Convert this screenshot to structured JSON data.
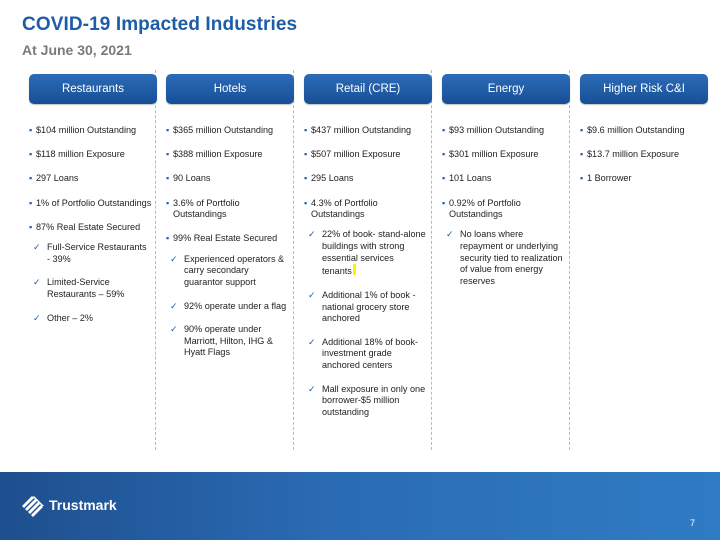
{
  "title": "COVID-19 Impacted Industries",
  "subtitle": "At June 30, 2021",
  "columns": [
    {
      "header": "Restaurants",
      "items": [
        "$104 million Outstanding",
        "$118 million Exposure",
        "297 Loans",
        "1% of Portfolio Outstandings",
        "87% Real Estate Secured"
      ],
      "subitems": [
        "Full-Service Restaurants - 39%",
        "Limited-Service Restaurants – 59%",
        "Other – 2%"
      ]
    },
    {
      "header": "Hotels",
      "items": [
        "$365 million Outstanding",
        "$388 million Exposure",
        "90 Loans",
        "3.6% of Portfolio Outstandings",
        "99% Real Estate Secured"
      ],
      "subitems": [
        "Experienced operators & carry secondary guarantor support",
        "92% operate under a flag",
        "90% operate under Marriott, Hilton, IHG & Hyatt Flags"
      ]
    },
    {
      "header": "Retail (CRE)",
      "items": [
        "$437 million Outstanding",
        "$507 million Exposure",
        "295 Loans",
        "4.3% of Portfolio Outstandings"
      ],
      "subitems": [
        "22% of book- stand-alone buildings with strong essential services tenants",
        "Additional 1% of book - national grocery store anchored",
        "Additional 18% of book-investment grade anchored centers",
        "Mall exposure in only one borrower-$5 million outstanding"
      ]
    },
    {
      "header": "Energy",
      "items": [
        "$93 million Outstanding",
        "$301 million Exposure",
        "101 Loans",
        "0.92% of Portfolio Outstandings"
      ],
      "subitems": [
        "No loans where repayment or underlying security tied to realization of value from energy reserves"
      ]
    },
    {
      "header": "Higher Risk C&I",
      "items": [
        "$9.6 million Outstanding",
        "$13.7 million Exposure",
        "1 Borrower"
      ],
      "subitems": []
    }
  ],
  "footer": {
    "logo_text": "Trustmark",
    "page_number": "7"
  },
  "colors": {
    "brand_blue": "#1d5da8",
    "subtitle_gray": "#7a7a7a",
    "highlight_yellow": "#fff200"
  },
  "icons": {
    "bullet": "square-bullet-icon",
    "sub_bullet": "checkmark-icon",
    "logo": "trustmark-logo-icon"
  }
}
